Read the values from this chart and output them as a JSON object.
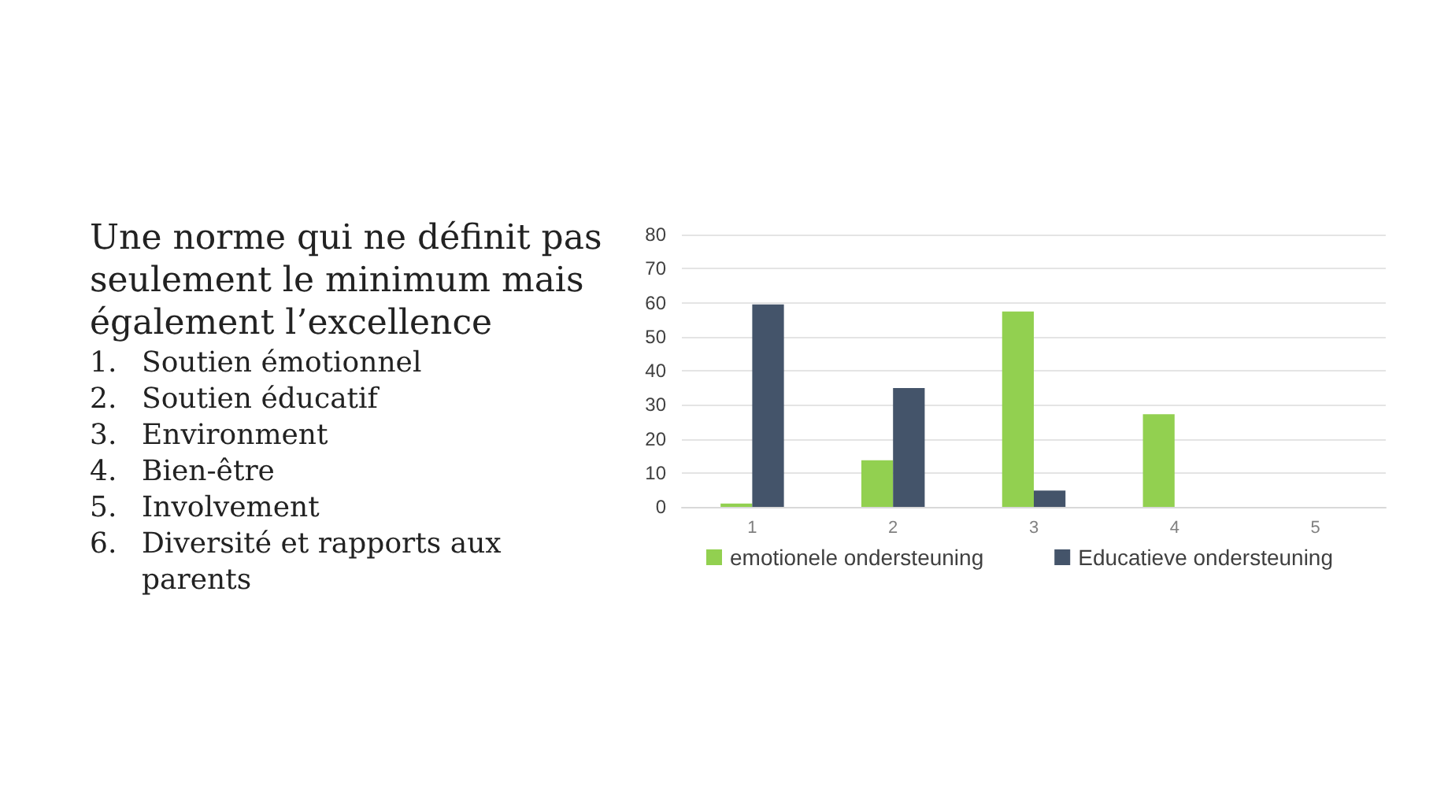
{
  "chart_data": {
    "type": "bar",
    "title": "Une norme qui ne définit pas seulement le minimum mais également l’excellence",
    "annotations": [
      "1. Soutien émotionnel",
      "2. Soutien éducatif",
      "3. Environment",
      "4. Bien-être",
      "5. Involvement",
      "6. Diversité et rapports aux parents"
    ],
    "categories": [
      "1",
      "2",
      "3",
      "4",
      "5"
    ],
    "series": [
      {
        "name": "emotionele ondersteuning",
        "color": "#92d050",
        "values": [
          1,
          13.7,
          57.4,
          27.2,
          null
        ]
      },
      {
        "name": "Educatieve ondersteuning",
        "color": "#44546a",
        "values": [
          59.5,
          34.9,
          4.8,
          null,
          null
        ]
      }
    ],
    "ylim": [
      0,
      80
    ],
    "yticks": [
      0,
      10,
      20,
      30,
      40,
      50,
      60,
      70,
      80
    ],
    "grid": "y",
    "legend": "bottom"
  }
}
